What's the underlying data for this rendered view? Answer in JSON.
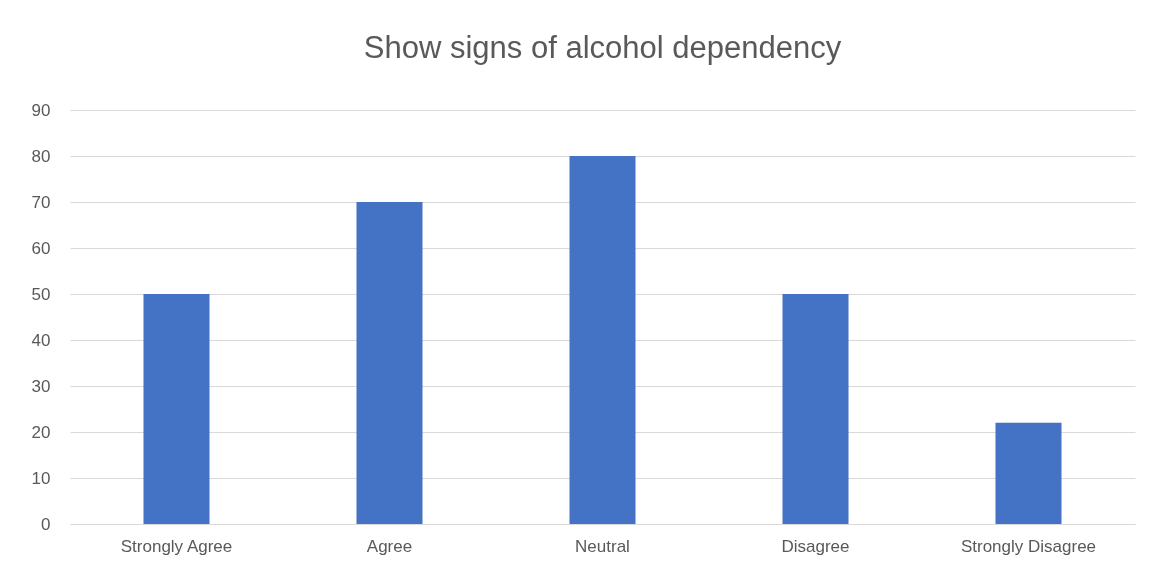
{
  "chart_data": {
    "type": "bar",
    "title": "Show signs of alcohol dependency",
    "categories": [
      "Strongly Agree",
      "Agree",
      "Neutral",
      "Disagree",
      "Strongly Disagree"
    ],
    "values": [
      50,
      70,
      80,
      50,
      22
    ],
    "color": "#4472c4",
    "ylim": [
      0,
      90
    ],
    "yticks": [
      0,
      10,
      20,
      30,
      40,
      50,
      60,
      70,
      80,
      90
    ],
    "grid": "y"
  }
}
